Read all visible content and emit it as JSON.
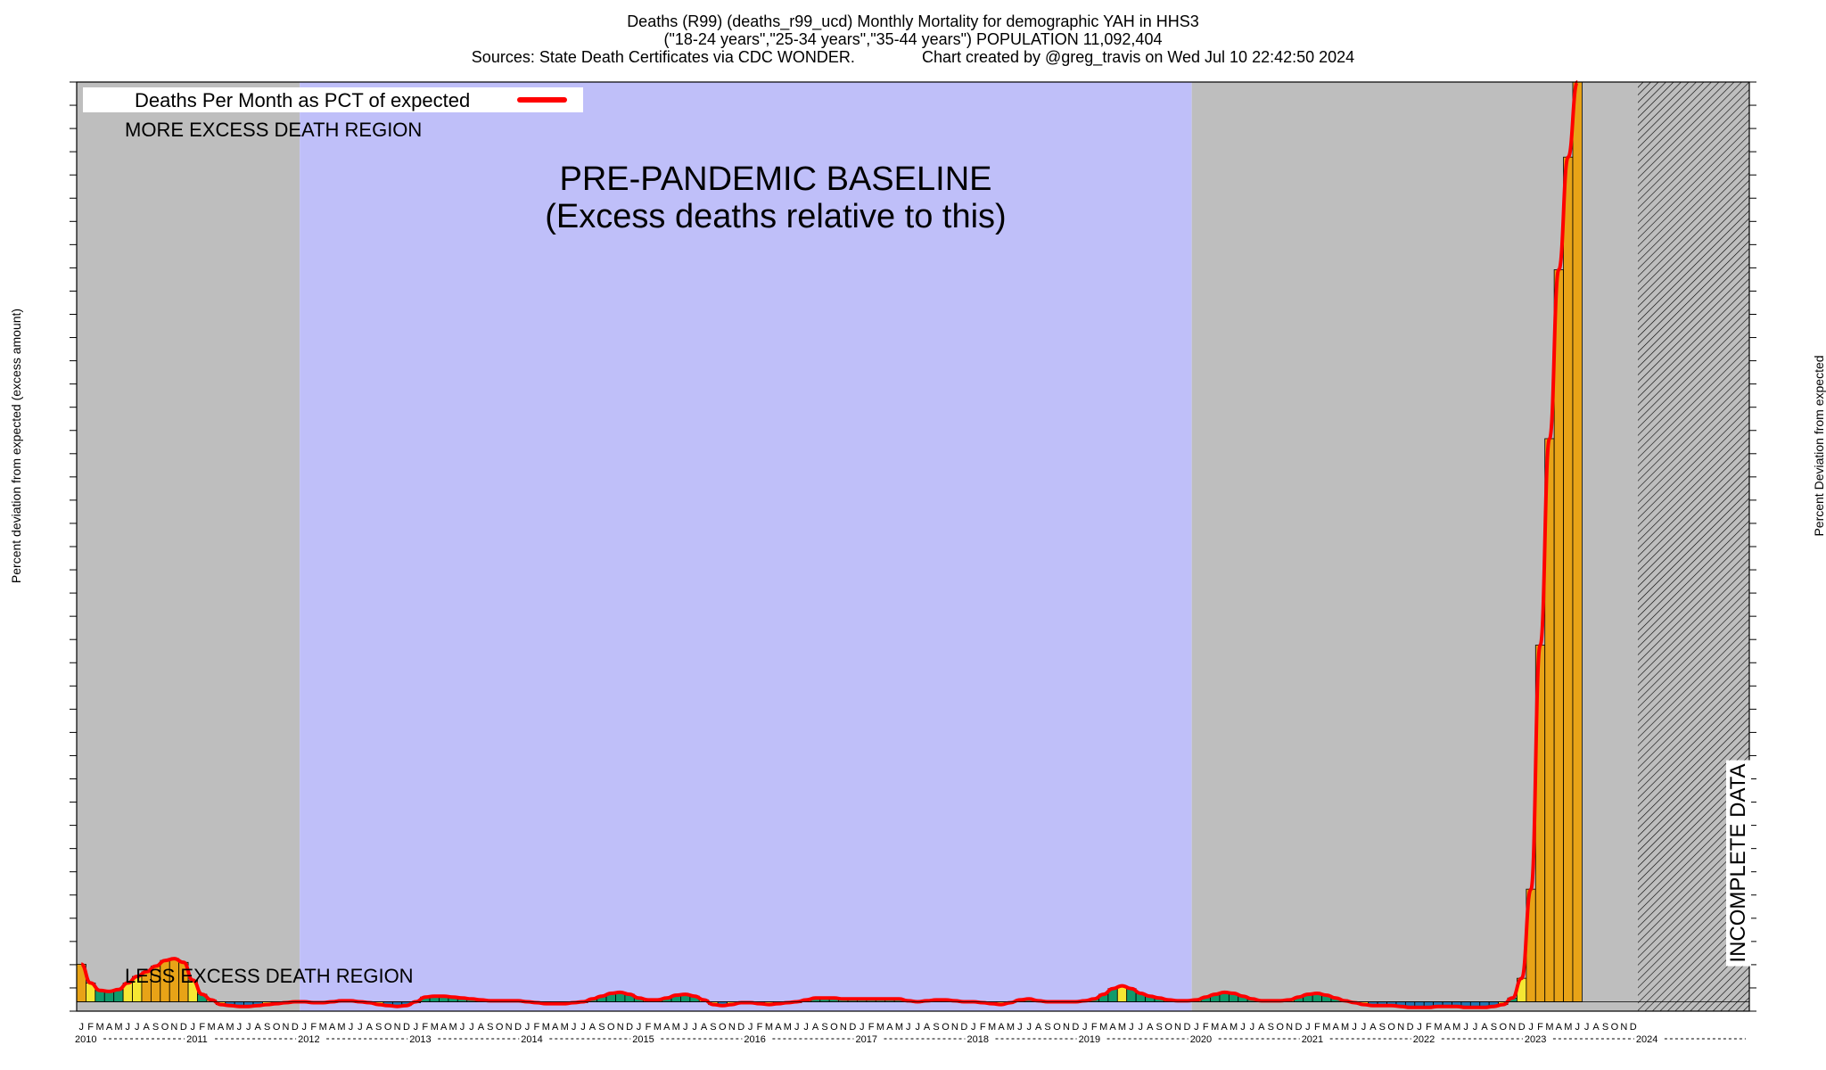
{
  "title": {
    "line1": "Deaths (R99) (deaths_r99_ucd) Monthly Mortality for demographic YAH in HHS3",
    "line2": "(\"18-24 years\",\"25-34 years\",\"35-44 years\") POPULATION 11,092,404",
    "line3": "Sources: State Death Certificates via CDC WONDER.               Chart created by @greg_travis on Wed Jul 10 22:42:50 2024"
  },
  "axes": {
    "ylabel_left": "Percent deviation from expected (excess amount)",
    "ylabel_right": "Percent Deviation from expected"
  },
  "legend": {
    "label": "Deaths Per Month as PCT of expected"
  },
  "annotations": {
    "more_excess": "MORE EXCESS DEATH REGION",
    "less_excess": "LESS EXCESS DEATH REGION",
    "baseline_line1": "PRE-PANDEMIC BASELINE",
    "baseline_line2": "(Excess deaths relative to this)",
    "incomplete": "INCOMPLETE DATA"
  },
  "colors": {
    "baseline_region": "#bfbff9",
    "gray_region": "#bebebe",
    "line": "#ff0000",
    "bar_blue": "#1f77b4",
    "bar_green": "#119a6b",
    "bar_yellow": "#f5e733",
    "bar_orange": "#e8a317"
  },
  "chart_data": {
    "type": "bar",
    "month_letters": [
      "J",
      "F",
      "M",
      "A",
      "M",
      "J",
      "J",
      "A",
      "S",
      "O",
      "N",
      "D"
    ],
    "years": [
      "2010",
      "2011",
      "2012",
      "2013",
      "2014",
      "2015",
      "2016",
      "2017",
      "2018",
      "2019",
      "2020",
      "2021",
      "2022",
      "2023",
      "2024"
    ],
    "baseline_period": [
      "2012-01",
      "2019-12"
    ],
    "incomplete_from": "2024-01",
    "series": [
      {
        "name": "Deaths Per Month as PCT of expected",
        "values": [
          40,
          20,
          12,
          11,
          13,
          20,
          27,
          32,
          38,
          44,
          46,
          42,
          23,
          8,
          2,
          -3,
          -4,
          -5,
          -5,
          -4,
          -3,
          -2,
          -1,
          0,
          0,
          -1,
          -1,
          0,
          1,
          1,
          0,
          -1,
          -3,
          -4,
          -5,
          -4,
          0,
          5,
          6,
          6,
          5,
          4,
          3,
          2,
          1,
          1,
          1,
          1,
          0,
          -1,
          -2,
          -2,
          -2,
          -1,
          0,
          3,
          6,
          9,
          10,
          8,
          4,
          2,
          2,
          4,
          7,
          8,
          6,
          2,
          -3,
          -4,
          -3,
          -1,
          -1,
          -2,
          -3,
          -2,
          -1,
          0,
          2,
          4,
          4,
          4,
          3,
          3,
          3,
          3,
          3,
          3,
          3,
          1,
          0,
          1,
          2,
          2,
          1,
          0,
          0,
          -1,
          -2,
          -3,
          -1,
          2,
          3,
          1,
          0,
          0,
          0,
          0,
          1,
          3,
          8,
          14,
          17,
          14,
          9,
          6,
          4,
          2,
          1,
          1,
          2,
          5,
          8,
          10,
          9,
          6,
          3,
          1,
          1,
          1,
          2,
          5,
          8,
          9,
          7,
          4,
          1,
          -1,
          -3,
          -4,
          -4,
          -4,
          -5,
          -6,
          -6,
          -6,
          -5,
          -5,
          -5,
          -6,
          -6,
          -6,
          -5,
          -3,
          4,
          25,
          120,
          380,
          600,
          780,
          900,
          980
        ]
      }
    ],
    "title": "Deaths (R99) (deaths_r99_ucd) Monthly Mortality for demographic YAH in HHS3",
    "xlabel": "",
    "ylabel": "Percent deviation from expected (excess amount)",
    "ylim": [
      -10,
      980
    ],
    "grid": false,
    "legend_position": "top-left"
  }
}
